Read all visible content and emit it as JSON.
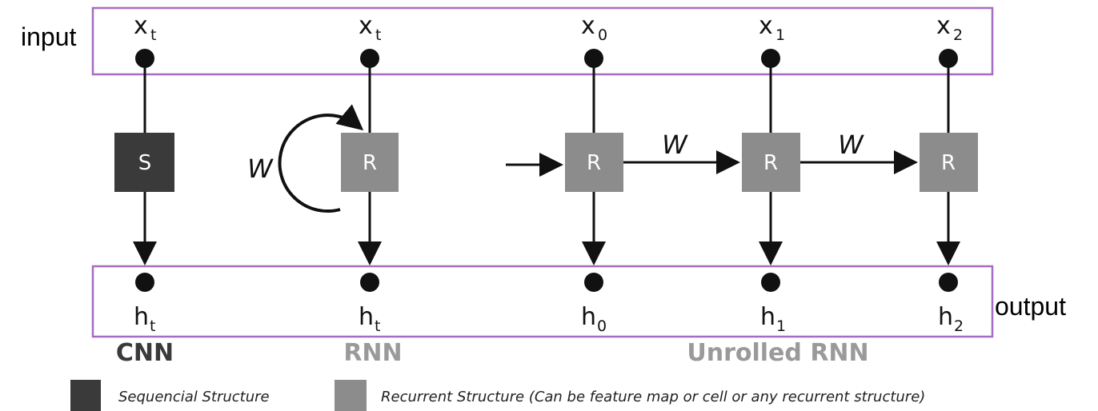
{
  "labels": {
    "input": "input",
    "output": "output"
  },
  "columns": [
    {
      "x_main": "x",
      "x_sub": "t",
      "box": "S",
      "h_main": "h",
      "h_sub": "t",
      "kind": "sequential"
    },
    {
      "x_main": "x",
      "x_sub": "t",
      "box": "R",
      "h_main": "h",
      "h_sub": "t",
      "kind": "recurrent"
    },
    {
      "x_main": "x",
      "x_sub": "0",
      "box": "R",
      "h_main": "h",
      "h_sub": "0",
      "kind": "recurrent"
    },
    {
      "x_main": "x",
      "x_sub": "1",
      "box": "R",
      "h_main": "h",
      "h_sub": "1",
      "kind": "recurrent"
    },
    {
      "x_main": "x",
      "x_sub": "2",
      "box": "R",
      "h_main": "h",
      "h_sub": "2",
      "kind": "recurrent"
    }
  ],
  "weights": {
    "loop": "W",
    "edge_0_1": "W",
    "edge_1_2": "W"
  },
  "sections": {
    "cnn": "CNN",
    "rnn": "RNN",
    "unrolled": "Unrolled RNN"
  },
  "legend": {
    "sequential": "Sequencial Structure",
    "recurrent": "Recurrent Structure (Can be feature map or cell or any recurrent structure)"
  },
  "colors": {
    "frame": "#a66bc4",
    "sequential_box": "#3a3a3a",
    "recurrent_box": "#8c8c8c",
    "node": "#111111",
    "cnn_label": "#3a3a3a",
    "rnn_label": "#9a9a9a"
  }
}
